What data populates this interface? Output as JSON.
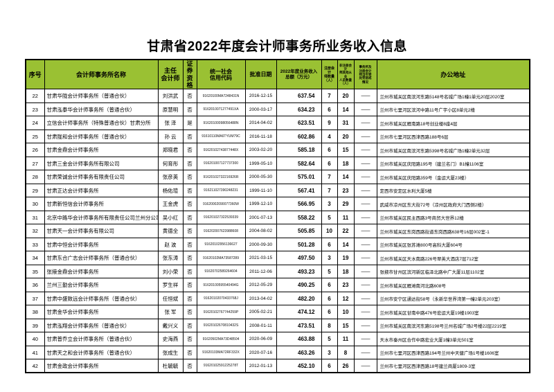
{
  "title": "甘肃省2022年度会计师事务所业务收入信息",
  "colors": {
    "header_bg": "#9ac133",
    "grid_border": "#000000",
    "page_bg": "#ffffff"
  },
  "table": {
    "headers": [
      "序号",
      "会计师事务所名称",
      "主任\n会计师",
      "证券\n资格",
      "统一社会\n信用代码",
      "批准日期",
      "2022年度业务收入\n总额（万元）",
      "注册会计\n师数量\n（人）",
      "非注册会计\n师其他从业\n人员数量\n（人）",
      "事务所及\n注册会计\n师当年受\n处罚惩戒\n情况",
      "办公地址"
    ],
    "rows": [
      [
        "22",
        "甘肃华陇会计师事务所（普通合伙）",
        "刘洪武",
        "否",
        "91620100MA7248431N",
        "2016-12-15",
        "637.54",
        "7",
        "20",
        "——",
        "兰州市城关区南滨河东路5148号名城广场1幢1单元20层2020室"
      ],
      [
        "23",
        "甘肃泓泰华会计师事务所（普通合伙）",
        "原慧明",
        "否",
        "9162010071277491XA",
        "2000-03-17",
        "634.23",
        "6",
        "14",
        "——",
        "兰州市七里河区滨河中路11号广宇小区8单元2楼"
      ],
      [
        "24",
        "立信会计师事务所（特殊普通合伙）甘肃分所",
        "张  泽",
        "是",
        "91620100098056488N",
        "2014-04-02",
        "623.51",
        "9",
        "31",
        "——",
        "兰州市城关区雁南路18号创业楼8座4层"
      ],
      [
        "25",
        "甘肃陇和会计师事务所（普通合伙）",
        "孙  云",
        "否",
        "91610110MA6TYUM79C",
        "2016-11-18",
        "602.86",
        "4",
        "20",
        "——",
        "兰州市七里河区西津西路188号6层"
      ],
      [
        "26",
        "甘肃金鼎会计师事务所",
        "郑晓君",
        "否",
        "91620102743877448X",
        "2003-02-20",
        "585.18",
        "6",
        "15",
        "——",
        "兰州市城关区南滨河东路5398号名城广场1幢2单元32层"
      ],
      [
        "27",
        "甘肃三金会计师事务所有限公司",
        "何育彤",
        "否",
        "916201007127737300",
        "1999-05-10",
        "582.64",
        "6",
        "18",
        "——",
        "兰州市城关区庆阳路195号（建兰名门）B1幢1106室"
      ],
      [
        "28",
        "甘肃荣诚会计师事务有限责任公司",
        "张彦英",
        "否",
        "91620102732216926R",
        "2000-05-30",
        "575.01",
        "7",
        "14",
        "——",
        "兰州市城关区庆阳路359号（金运大厦23楼）"
      ],
      [
        "29",
        "甘肃正达会计师事务所",
        "杨佑瑄",
        "否",
        "916211027390248231",
        "1999-11-10",
        "567.41",
        "7",
        "23",
        "——",
        "定西市安定区水利大厦5楼"
      ],
      [
        "30",
        "甘肃新恒信会计师事务所",
        "王金虎",
        "否",
        "91620002090077360W",
        "1999-12-10",
        "566.95",
        "3",
        "29",
        "——",
        "武威市凉州区东大街72号（凉州区政府大门西侧2楼）"
      ],
      [
        "31",
        "北京中路华会计师事务所有限责任公司兰州分公司",
        "吴小红",
        "否",
        "916201027322539339",
        "2001-07-13",
        "558.22",
        "5",
        "11",
        "——",
        "兰州市城关区民主西路3号商贸大世界12楼"
      ],
      [
        "32",
        "甘肃天一会计师事务有限公司",
        "黄德全",
        "否",
        "916202007623988608",
        "2004-08-02",
        "505.85",
        "10",
        "22",
        "——",
        "兰州市城关区东岗西路街道东岗西路638号16层002室-1"
      ],
      [
        "33",
        "甘肃中恒会计师事务所",
        "赵  波",
        "否",
        "91620102956136627",
        "2000-09-30",
        "501.28",
        "6",
        "14",
        "——",
        "兰州市城关区张苏滩800号高科大厦604号"
      ],
      [
        "34",
        "甘肃东合广志会计师事务所（普通合伙）",
        "张东涛",
        "否",
        "91620102MA73587289",
        "2021-03-15",
        "497.50",
        "3",
        "19",
        "——",
        "兰州市城关区天水南路226号翠英大酒店7层712室"
      ],
      [
        "35",
        "张掖金鼎会计师事务所",
        "刘小荣",
        "否",
        "91620702589264604",
        "2011-12-06",
        "493.23",
        "5",
        "18",
        "——",
        "张掖市甘州区滨河新区临泽北路中广大厦11层1102室"
      ],
      [
        "36",
        "兰州三勤会计师事务所",
        "罗生祥",
        "否",
        "91620100595540494G",
        "2012-05-29",
        "490.25",
        "6",
        "23",
        "——",
        "兰州市城关区雁滩南河北路608号"
      ],
      [
        "37",
        "甘肃中盛致远会计师事务所（普通合伙）",
        "任恒斌",
        "否",
        "91620102070433768J",
        "2013-04-02",
        "482.20",
        "6",
        "12",
        "——",
        "兰州市安宁区通达街58号（永新华世界湾第一幢2单元203室）"
      ],
      [
        "38",
        "甘肃金华会计师事务所",
        "张  军",
        "否",
        "91620102767744259P",
        "2005-02-21",
        "474.12",
        "6",
        "10",
        "——",
        "兰州市城关区甘南中路476号宏运大厦19楼1903室"
      ],
      [
        "39",
        "甘肃泓翔会计师事务所（普通合伙）",
        "戴兴义",
        "否",
        "91620102670810432S",
        "2008-01-11",
        "473.51",
        "8",
        "15",
        "——",
        "兰州市城关区南滨河东路5198号兰州名城广场2号楼22层2219室"
      ],
      [
        "40",
        "甘肃普乔立会计师事务所（普通合伙）",
        "史海燕",
        "否",
        "91620502MA73D48504",
        "2020-06-09",
        "463.88",
        "5",
        "11",
        "——",
        "天水市秦州区合作中路宏业大厦1幢3单元501室"
      ],
      [
        "41",
        "甘肃天之和会计师事务所（普通合伙）",
        "张成生",
        "否",
        "91620103MA72RF332X",
        "2020-07-16",
        "463.26",
        "3",
        "8",
        "——",
        "兰州市七里河区西津西路194号兰州中天健广场1号楼1606室"
      ],
      [
        "42",
        "甘肃金政会计师事务所",
        "杜毓毓",
        "否",
        "91620102591225278T",
        "2012-01-13",
        "452.10",
        "6",
        "26",
        "——",
        "兰州市七里河区西津西路18号建兰商厦1809-3室"
      ]
    ]
  }
}
